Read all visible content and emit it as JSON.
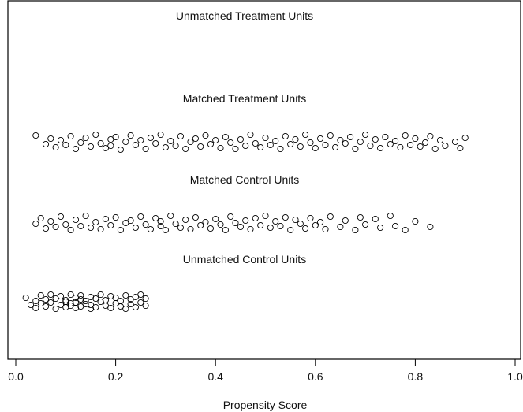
{
  "chart_data": {
    "type": "scatter",
    "title": "",
    "xlabel": "Propensity Score",
    "ylabel": "",
    "xlim": [
      0.0,
      1.0
    ],
    "xticks": [
      "0.0",
      "0.2",
      "0.4",
      "0.6",
      "0.8",
      "1.0"
    ],
    "grid": false,
    "groups": [
      {
        "label": "Unmatched Treatment Units",
        "points": []
      },
      {
        "label": "Matched Treatment Units",
        "points": [
          [
            0.04,
            -0.8
          ],
          [
            0.06,
            0.3
          ],
          [
            0.07,
            -0.4
          ],
          [
            0.08,
            0.7
          ],
          [
            0.09,
            -0.2
          ],
          [
            0.1,
            0.4
          ],
          [
            0.11,
            -0.7
          ],
          [
            0.12,
            0.9
          ],
          [
            0.13,
            0.1
          ],
          [
            0.14,
            -0.5
          ],
          [
            0.15,
            0.6
          ],
          [
            0.16,
            -0.9
          ],
          [
            0.17,
            0.2
          ],
          [
            0.18,
            0.8
          ],
          [
            0.19,
            -0.3
          ],
          [
            0.19,
            0.5
          ],
          [
            0.2,
            -0.6
          ],
          [
            0.21,
            1.0
          ],
          [
            0.22,
            0.0
          ],
          [
            0.23,
            -0.8
          ],
          [
            0.24,
            0.4
          ],
          [
            0.25,
            -0.2
          ],
          [
            0.26,
            0.9
          ],
          [
            0.27,
            -0.5
          ],
          [
            0.28,
            0.2
          ],
          [
            0.29,
            -0.9
          ],
          [
            0.3,
            0.7
          ],
          [
            0.31,
            -0.1
          ],
          [
            0.32,
            0.5
          ],
          [
            0.33,
            -0.7
          ],
          [
            0.34,
            0.9
          ],
          [
            0.35,
            0.0
          ],
          [
            0.36,
            -0.4
          ],
          [
            0.37,
            0.6
          ],
          [
            0.38,
            -0.8
          ],
          [
            0.39,
            0.3
          ],
          [
            0.4,
            -0.2
          ],
          [
            0.41,
            0.8
          ],
          [
            0.42,
            -0.6
          ],
          [
            0.43,
            0.1
          ],
          [
            0.44,
            0.9
          ],
          [
            0.45,
            -0.3
          ],
          [
            0.46,
            0.5
          ],
          [
            0.47,
            -0.9
          ],
          [
            0.48,
            0.2
          ],
          [
            0.49,
            0.7
          ],
          [
            0.5,
            -0.5
          ],
          [
            0.51,
            0.4
          ],
          [
            0.52,
            -0.1
          ],
          [
            0.53,
            0.9
          ],
          [
            0.54,
            -0.7
          ],
          [
            0.55,
            0.3
          ],
          [
            0.56,
            -0.3
          ],
          [
            0.57,
            0.6
          ],
          [
            0.58,
            -0.9
          ],
          [
            0.59,
            0.1
          ],
          [
            0.6,
            0.8
          ],
          [
            0.61,
            -0.4
          ],
          [
            0.62,
            0.4
          ],
          [
            0.63,
            -0.8
          ],
          [
            0.64,
            0.7
          ],
          [
            0.65,
            -0.2
          ],
          [
            0.66,
            0.2
          ],
          [
            0.67,
            -0.6
          ],
          [
            0.68,
            0.9
          ],
          [
            0.69,
            0.0
          ],
          [
            0.7,
            -0.9
          ],
          [
            0.71,
            0.5
          ],
          [
            0.72,
            -0.3
          ],
          [
            0.73,
            0.8
          ],
          [
            0.74,
            -0.6
          ],
          [
            0.75,
            0.3
          ],
          [
            0.76,
            -0.1
          ],
          [
            0.77,
            0.7
          ],
          [
            0.78,
            -0.8
          ],
          [
            0.79,
            0.4
          ],
          [
            0.8,
            -0.4
          ],
          [
            0.81,
            0.6
          ],
          [
            0.82,
            0.1
          ],
          [
            0.83,
            -0.7
          ],
          [
            0.84,
            0.9
          ],
          [
            0.85,
            -0.2
          ],
          [
            0.86,
            0.5
          ],
          [
            0.88,
            0.0
          ],
          [
            0.89,
            0.8
          ],
          [
            0.9,
            -0.5
          ]
        ]
      },
      {
        "label": "Matched Control Units",
        "points": [
          [
            0.04,
            0.1
          ],
          [
            0.05,
            -0.6
          ],
          [
            0.06,
            0.7
          ],
          [
            0.07,
            -0.2
          ],
          [
            0.08,
            0.5
          ],
          [
            0.09,
            -0.8
          ],
          [
            0.1,
            0.2
          ],
          [
            0.11,
            0.9
          ],
          [
            0.12,
            -0.4
          ],
          [
            0.13,
            0.4
          ],
          [
            0.14,
            -0.9
          ],
          [
            0.15,
            0.6
          ],
          [
            0.16,
            -0.1
          ],
          [
            0.17,
            0.8
          ],
          [
            0.18,
            -0.5
          ],
          [
            0.19,
            0.3
          ],
          [
            0.2,
            -0.7
          ],
          [
            0.21,
            0.9
          ],
          [
            0.22,
            0.0
          ],
          [
            0.23,
            -0.3
          ],
          [
            0.24,
            0.6
          ],
          [
            0.25,
            -0.8
          ],
          [
            0.26,
            0.2
          ],
          [
            0.27,
            0.8
          ],
          [
            0.28,
            -0.6
          ],
          [
            0.29,
            0.4
          ],
          [
            0.29,
            -0.2
          ],
          [
            0.3,
            0.9
          ],
          [
            0.31,
            -0.9
          ],
          [
            0.32,
            0.1
          ],
          [
            0.33,
            0.6
          ],
          [
            0.34,
            -0.4
          ],
          [
            0.35,
            0.8
          ],
          [
            0.36,
            -0.7
          ],
          [
            0.37,
            0.3
          ],
          [
            0.38,
            -0.1
          ],
          [
            0.39,
            0.7
          ],
          [
            0.4,
            -0.5
          ],
          [
            0.41,
            0.2
          ],
          [
            0.42,
            0.9
          ],
          [
            0.43,
            -0.8
          ],
          [
            0.44,
            0.0
          ],
          [
            0.45,
            0.5
          ],
          [
            0.46,
            -0.3
          ],
          [
            0.47,
            0.8
          ],
          [
            0.48,
            -0.6
          ],
          [
            0.49,
            0.3
          ],
          [
            0.5,
            -0.9
          ],
          [
            0.51,
            0.6
          ],
          [
            0.52,
            -0.2
          ],
          [
            0.53,
            0.4
          ],
          [
            0.54,
            -0.7
          ],
          [
            0.55,
            0.9
          ],
          [
            0.56,
            -0.4
          ],
          [
            0.57,
            0.1
          ],
          [
            0.58,
            0.7
          ],
          [
            0.59,
            -0.6
          ],
          [
            0.6,
            0.3
          ],
          [
            0.61,
            -0.1
          ],
          [
            0.62,
            0.8
          ],
          [
            0.63,
            -0.8
          ],
          [
            0.65,
            0.5
          ],
          [
            0.66,
            -0.3
          ],
          [
            0.68,
            0.9
          ],
          [
            0.69,
            -0.7
          ],
          [
            0.7,
            0.2
          ],
          [
            0.72,
            -0.5
          ],
          [
            0.73,
            0.6
          ],
          [
            0.75,
            -0.9
          ],
          [
            0.76,
            0.4
          ],
          [
            0.78,
            0.9
          ],
          [
            0.8,
            -0.2
          ],
          [
            0.83,
            0.5
          ]
        ]
      },
      {
        "label": "Unmatched Control Units",
        "points": [
          [
            0.02,
            -0.5
          ],
          [
            0.03,
            0.4
          ],
          [
            0.04,
            -0.1
          ],
          [
            0.04,
            0.8
          ],
          [
            0.05,
            -0.8
          ],
          [
            0.05,
            0.2
          ],
          [
            0.06,
            -0.3
          ],
          [
            0.06,
            0.6
          ],
          [
            0.07,
            -0.9
          ],
          [
            0.07,
            0.1
          ],
          [
            0.08,
            0.9
          ],
          [
            0.08,
            -0.4
          ],
          [
            0.09,
            0.4
          ],
          [
            0.09,
            -0.7
          ],
          [
            0.1,
            0.0
          ],
          [
            0.1,
            0.7
          ],
          [
            0.1,
            -0.2
          ],
          [
            0.11,
            0.5
          ],
          [
            0.11,
            -0.9
          ],
          [
            0.11,
            0.2
          ],
          [
            0.12,
            0.8
          ],
          [
            0.12,
            -0.5
          ],
          [
            0.12,
            0.1
          ],
          [
            0.13,
            -0.3
          ],
          [
            0.13,
            0.6
          ],
          [
            0.13,
            -0.8
          ],
          [
            0.14,
            0.3
          ],
          [
            0.14,
            -0.1
          ],
          [
            0.15,
            0.9
          ],
          [
            0.15,
            -0.6
          ],
          [
            0.15,
            0.4
          ],
          [
            0.16,
            -0.4
          ],
          [
            0.16,
            0.7
          ],
          [
            0.17,
            -0.9
          ],
          [
            0.17,
            0.0
          ],
          [
            0.18,
            0.5
          ],
          [
            0.18,
            -0.2
          ],
          [
            0.19,
            0.8
          ],
          [
            0.19,
            -0.7
          ],
          [
            0.2,
            0.2
          ],
          [
            0.2,
            -0.5
          ],
          [
            0.21,
            0.6
          ],
          [
            0.21,
            -0.1
          ],
          [
            0.22,
            0.9
          ],
          [
            0.22,
            -0.8
          ],
          [
            0.23,
            0.3
          ],
          [
            0.23,
            -0.3
          ],
          [
            0.24,
            0.7
          ],
          [
            0.24,
            -0.6
          ],
          [
            0.25,
            0.1
          ],
          [
            0.25,
            -0.9
          ],
          [
            0.26,
            0.5
          ],
          [
            0.26,
            -0.4
          ]
        ]
      }
    ]
  }
}
